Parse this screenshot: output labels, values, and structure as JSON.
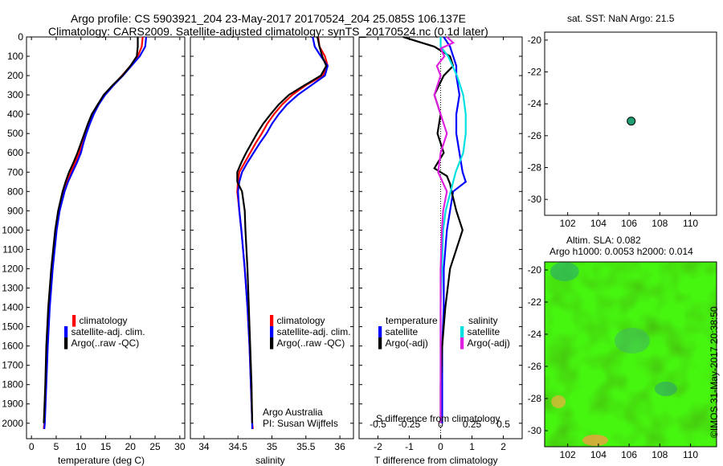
{
  "header": {
    "title_line1": "Argo profile: CS 5903921_204 23-May-2017 20170524_204 25.085S 106.137E",
    "title_line2": "Climatology: CARS2009. Satellite-adjusted climatology: synTS_20170524.nc (0.1d later)"
  },
  "colors": {
    "climatology": "#ff0000",
    "satellite": "#0000ff",
    "argo": "#000000",
    "cyan": "#00e0e0",
    "magenta": "#e020e0"
  },
  "panels": {
    "temperature": {
      "xlabel": "temperature (deg C)",
      "legend": [
        "climatology",
        "satellite-adj. clim.",
        "Argo(..raw -QC)"
      ]
    },
    "salinity": {
      "xlabel": "salinity",
      "legend": [
        "climatology",
        "satellite-adj. clim.",
        "Argo(..raw -QC)"
      ],
      "credit1": "Argo Australia",
      "credit2": "PI: Susan Wijffels"
    },
    "difference": {
      "xlabel_bottom": "T difference from climatology",
      "xlabel_top": "S difference from climatology",
      "legend_temp_title": "temperature",
      "legend_sal_title": "salinity",
      "legend_temp": [
        "satellite",
        "Argo(-adj)"
      ],
      "legend_sal": [
        "satellite",
        "Argo(-adj)"
      ]
    },
    "map_top": {
      "title": "sat. SST: NaN Argo: 21.5"
    },
    "map_bottom": {
      "title1": "Altim. SLA: 0.082",
      "title2": "Argo h1000: 0.0053 h2000: 0.014"
    },
    "stamp": "©IMOS 31-May-2017 20:38:50"
  },
  "chart_data": [
    {
      "type": "line",
      "name": "temperature",
      "xlabel": "temperature (deg C)",
      "ylabel": "",
      "xlim": [
        -1,
        31
      ],
      "ylim": [
        2080,
        0
      ],
      "xticks": [
        0,
        5,
        10,
        15,
        20,
        25,
        30
      ],
      "yticks": [
        0,
        100,
        200,
        300,
        400,
        500,
        600,
        700,
        800,
        900,
        1000,
        1100,
        1200,
        1300,
        1400,
        1500,
        1600,
        1700,
        1800,
        1900,
        2000
      ],
      "series": [
        {
          "name": "climatology",
          "color": "#ff0000",
          "depth": [
            0,
            50,
            100,
            150,
            200,
            250,
            300,
            350,
            400,
            450,
            500,
            550,
            600,
            650,
            700,
            750,
            800,
            900,
            1000,
            1200,
            1400,
            1600,
            1800,
            2000,
            2030
          ],
          "values": [
            22.5,
            22.3,
            21.5,
            20.0,
            18.3,
            16.5,
            14.8,
            13.4,
            12.3,
            11.5,
            10.8,
            10.2,
            9.7,
            8.8,
            8.0,
            7.2,
            6.5,
            5.6,
            5.0,
            4.2,
            3.6,
            3.2,
            2.9,
            2.6,
            2.5
          ]
        },
        {
          "name": "satellite-adj. clim.",
          "color": "#0000ff",
          "depth": [
            0,
            50,
            100,
            150,
            200,
            250,
            300,
            350,
            400,
            450,
            500,
            550,
            600,
            650,
            700,
            750,
            800,
            900,
            1000,
            1200,
            1400,
            1600,
            1800,
            2000,
            2030
          ],
          "values": [
            23.2,
            23.0,
            21.9,
            20.2,
            18.5,
            16.6,
            14.9,
            13.6,
            12.6,
            11.8,
            11.1,
            10.5,
            10.0,
            9.2,
            8.3,
            7.4,
            6.7,
            5.7,
            5.1,
            4.3,
            3.7,
            3.3,
            3.0,
            2.7,
            2.6
          ]
        },
        {
          "name": "Argo(..raw -QC)",
          "color": "#000000",
          "depth": [
            0,
            50,
            100,
            150,
            200,
            250,
            300,
            350,
            400,
            450,
            500,
            550,
            600,
            650,
            700,
            750,
            800,
            900,
            1000,
            1200,
            1400,
            1600,
            1800,
            2000
          ],
          "values": [
            21.5,
            21.5,
            21.3,
            20.0,
            18.4,
            16.4,
            14.6,
            13.4,
            12.2,
            11.4,
            10.7,
            10.0,
            9.3,
            8.5,
            7.6,
            6.9,
            6.3,
            5.4,
            4.8,
            4.0,
            3.4,
            3.0,
            2.8,
            2.5
          ]
        }
      ]
    },
    {
      "type": "line",
      "name": "salinity",
      "xlabel": "salinity",
      "ylabel": "",
      "xlim": [
        33.8,
        36.2
      ],
      "ylim": [
        2080,
        0
      ],
      "xticks": [
        34,
        34.5,
        35,
        35.5,
        36
      ],
      "series": [
        {
          "name": "climatology",
          "color": "#ff0000",
          "depth": [
            0,
            50,
            100,
            150,
            200,
            250,
            300,
            350,
            400,
            450,
            500,
            550,
            600,
            650,
            700,
            750,
            800,
            900,
            1000,
            1200,
            1400,
            1600,
            1800,
            2000,
            2030
          ],
          "values": [
            35.68,
            35.7,
            35.78,
            35.82,
            35.75,
            35.5,
            35.3,
            35.15,
            35.03,
            34.93,
            34.85,
            34.76,
            34.68,
            34.6,
            34.52,
            34.5,
            34.49,
            34.52,
            34.55,
            34.6,
            34.64,
            34.67,
            34.69,
            34.71,
            34.72
          ]
        },
        {
          "name": "satellite-adj. clim.",
          "color": "#0000ff",
          "depth": [
            0,
            50,
            100,
            150,
            200,
            250,
            300,
            350,
            400,
            450,
            500,
            550,
            600,
            650,
            700,
            750,
            800,
            900,
            1000,
            1200,
            1400,
            1600,
            1800,
            2000,
            2030
          ],
          "values": [
            35.6,
            35.63,
            35.72,
            35.82,
            35.78,
            35.58,
            35.38,
            35.22,
            35.1,
            35.0,
            34.92,
            34.82,
            34.73,
            34.64,
            34.56,
            34.52,
            34.5,
            34.52,
            34.55,
            34.6,
            34.64,
            34.67,
            34.69,
            34.71,
            34.71
          ]
        },
        {
          "name": "Argo(..raw -QC)",
          "color": "#000000",
          "depth": [
            0,
            50,
            100,
            150,
            200,
            250,
            300,
            350,
            400,
            450,
            500,
            550,
            600,
            650,
            700,
            750,
            800,
            900,
            1000,
            1200,
            1400,
            1600,
            1800,
            2000
          ],
          "values": [
            35.67,
            35.7,
            35.74,
            35.8,
            35.72,
            35.48,
            35.25,
            35.1,
            34.98,
            34.87,
            34.78,
            34.7,
            34.62,
            34.55,
            34.49,
            34.49,
            34.56,
            34.6,
            34.61,
            34.64,
            34.66,
            34.68,
            34.7,
            34.71
          ]
        }
      ]
    },
    {
      "type": "line",
      "name": "difference",
      "xlabel": "T difference from climatology",
      "xlabel_top": "S difference from climatology",
      "xlim": [
        -2.6,
        2.6
      ],
      "ylim": [
        2080,
        0
      ],
      "xticks": [
        -2,
        -1,
        0,
        1,
        2
      ],
      "xticks_top": [
        -0.5,
        -0.25,
        0,
        0.25,
        0.5
      ],
      "series": [
        {
          "name": "temperature satellite",
          "color": "#0000ff",
          "depth": [
            0,
            50,
            100,
            150,
            200,
            300,
            400,
            500,
            600,
            700,
            750,
            800,
            900,
            1000,
            1200,
            1400,
            1600,
            1800,
            2000
          ],
          "values": [
            0.1,
            0.3,
            0.4,
            0.5,
            0.5,
            0.6,
            0.5,
            0.5,
            0.6,
            0.7,
            0.8,
            0.4,
            0.3,
            0.2,
            0.1,
            0.1,
            0.05,
            0.05,
            0.05
          ]
        },
        {
          "name": "temperature Argo(-adj)",
          "color": "#000000",
          "depth": [
            0,
            20,
            50,
            100,
            150,
            200,
            300,
            400,
            500,
            600,
            680,
            720,
            760,
            800,
            900,
            1000,
            1100,
            1200,
            1400,
            1600,
            1800,
            2000
          ],
          "values": [
            -1.2,
            -0.8,
            -0.2,
            0.3,
            0.4,
            0.1,
            -0.2,
            0.0,
            -0.1,
            0.1,
            -0.2,
            0.2,
            0.3,
            0.35,
            0.5,
            0.7,
            0.5,
            0.3,
            0.15,
            0.05,
            0.0,
            0.0
          ]
        },
        {
          "name": "salinity satellite",
          "color": "#00e0e0",
          "depth": [
            0,
            50,
            100,
            200,
            300,
            400,
            500,
            600,
            700,
            800,
            900,
            1000,
            1200,
            1400,
            1600,
            1800,
            2000
          ],
          "values": [
            0.0,
            0.0,
            0.06,
            0.13,
            0.18,
            0.2,
            0.2,
            0.18,
            0.12,
            0.08,
            0.04,
            0.02,
            0.01,
            0.0,
            0.0,
            0.0,
            0.0
          ]
        },
        {
          "name": "salinity Argo(-adj)",
          "color": "#e020e0",
          "depth": [
            0,
            30,
            60,
            100,
            150,
            200,
            300,
            400,
            500,
            600,
            700,
            800,
            900,
            1000,
            1200,
            1400,
            1600,
            1800,
            2000
          ],
          "values": [
            0.05,
            0.1,
            0.0,
            0.03,
            -0.03,
            0.0,
            -0.05,
            0.0,
            0.05,
            0.0,
            -0.02,
            0.05,
            0.02,
            0.01,
            0.0,
            0.0,
            0.0,
            0.0,
            0.0
          ]
        }
      ]
    },
    {
      "type": "scatter",
      "name": "sst-map",
      "title": "sat. SST: NaN Argo: 21.5",
      "xlim": [
        100.5,
        111.7
      ],
      "ylim": [
        -31,
        -19.5
      ],
      "xticks": [
        102,
        104,
        106,
        108,
        110
      ],
      "yticks": [
        -20,
        -22,
        -24,
        -26,
        -28,
        -30
      ],
      "points": [
        {
          "x": 106.137,
          "y": -25.085
        }
      ]
    },
    {
      "type": "heatmap",
      "name": "sla-map",
      "title": "Altim. SLA: 0.082",
      "xlim": [
        100.5,
        111.7
      ],
      "ylim": [
        -31,
        -19.5
      ],
      "xticks": [
        102,
        104,
        106,
        108,
        110
      ],
      "yticks": [
        -20,
        -22,
        -24,
        -26,
        -28,
        -30
      ]
    }
  ]
}
